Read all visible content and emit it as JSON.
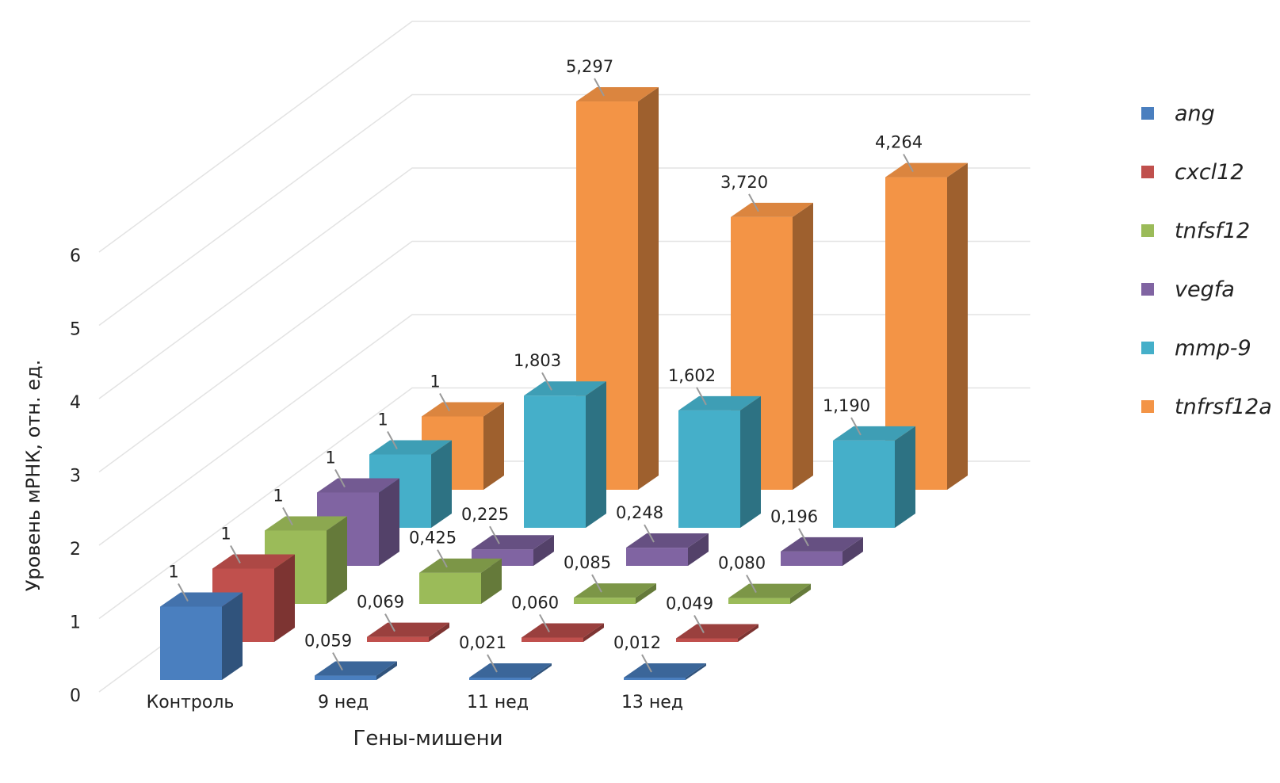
{
  "chart_data": {
    "type": "bar",
    "subtype": "3d-clustered-depth",
    "xlabel": "Гены-мишени",
    "ylabel": "Уровень мРНК, отн. ед.",
    "ylim": [
      0,
      6
    ],
    "yticks": [
      "0",
      "1",
      "2",
      "3",
      "4",
      "5",
      "6"
    ],
    "grid": true,
    "legend_position": "right",
    "categories": [
      "Контроль",
      "9 нед",
      "11 нед",
      "13 нед"
    ],
    "series": [
      {
        "name": "ang",
        "color": "#4a7fbf",
        "values": [
          1,
          0.059,
          0.021,
          0.012
        ],
        "labels": [
          "1",
          "0,059",
          "0,021",
          "0,012"
        ]
      },
      {
        "name": "cxcl12",
        "color": "#c0504d",
        "values": [
          1,
          0.069,
          0.06,
          0.049
        ],
        "labels": [
          "1",
          "0,069",
          "0,060",
          "0,049"
        ]
      },
      {
        "name": "tnfsf12",
        "color": "#9bbb59",
        "values": [
          1,
          0.425,
          0.085,
          0.08
        ],
        "labels": [
          "1",
          "0,425",
          "0,085",
          "0,080"
        ]
      },
      {
        "name": "vegfa",
        "color": "#8064a2",
        "values": [
          1,
          0.225,
          0.248,
          0.196
        ],
        "labels": [
          "1",
          "0,225",
          "0,248",
          "0,196"
        ]
      },
      {
        "name": "mmp-9",
        "color": "#45afc9",
        "values": [
          1,
          1.803,
          1.602,
          1.19
        ],
        "labels": [
          "1",
          "1,803",
          "1,602",
          "1,190"
        ]
      },
      {
        "name": "tnfrsf12a",
        "color": "#f39446",
        "values": [
          1,
          5.297,
          3.72,
          4.264
        ],
        "labels": [
          "1",
          "5,297",
          "3,720",
          "4,264"
        ]
      }
    ]
  }
}
